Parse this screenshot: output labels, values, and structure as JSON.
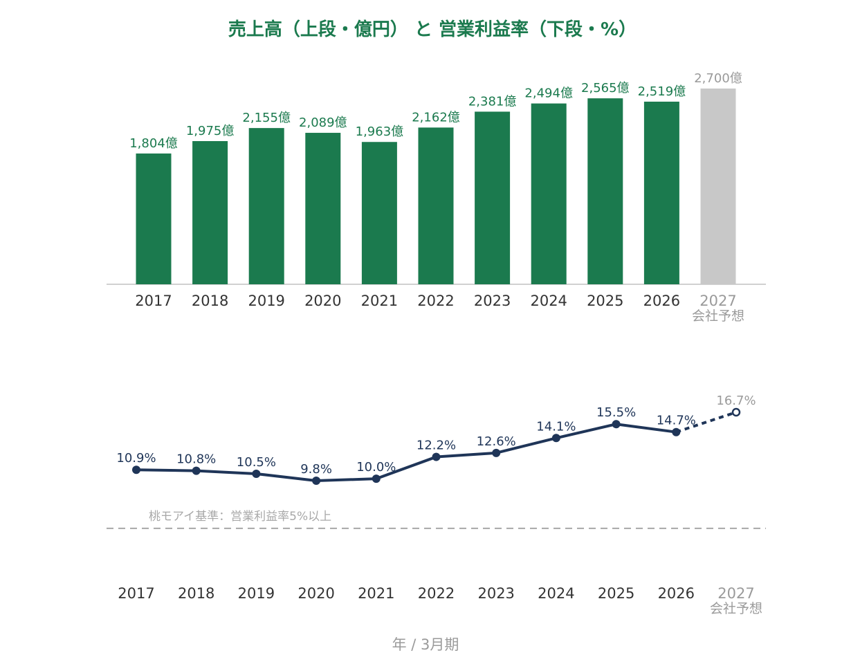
{
  "colors": {
    "bar": "#1b7a4e",
    "forecast_bar": "#c8c8c8",
    "line": "#1f3558",
    "title": "#1b7a4e",
    "forecast_text": "#9a9a9a",
    "tick": "#333333",
    "axis": "#b5b5b5",
    "threshold": "#a8a8a8"
  },
  "chart_data": [
    {
      "type": "bar",
      "title": "売上高（上段・億円） と 営業利益率（下段・%）",
      "categories": [
        "2017",
        "2018",
        "2019",
        "2020",
        "2021",
        "2022",
        "2023",
        "2024",
        "2025",
        "2026",
        "2027"
      ],
      "forecast_sublabel": "会社予想",
      "values": [
        1804,
        1975,
        2155,
        2089,
        1963,
        2162,
        2381,
        2494,
        2565,
        2519,
        2700
      ],
      "value_labels": [
        "1,804億",
        "1,975億",
        "2,155億",
        "2,089億",
        "1,963億",
        "2,162億",
        "2,381億",
        "2,494億",
        "2,565億",
        "2,519億",
        "2,700億"
      ],
      "forecast_index": 10,
      "ylim": [
        0,
        2700
      ]
    },
    {
      "type": "line",
      "categories": [
        "2017",
        "2018",
        "2019",
        "2020",
        "2021",
        "2022",
        "2023",
        "2024",
        "2025",
        "2026",
        "2027"
      ],
      "forecast_sublabel": "会社予想",
      "values": [
        10.9,
        10.8,
        10.5,
        9.8,
        10.0,
        12.2,
        12.6,
        14.1,
        15.5,
        14.7,
        16.7
      ],
      "value_labels": [
        "10.9%",
        "10.8%",
        "10.5%",
        "9.8%",
        "10.0%",
        "12.2%",
        "12.6%",
        "14.1%",
        "15.5%",
        "14.7%",
        "16.7%"
      ],
      "forecast_index": 10,
      "threshold": {
        "value": 5,
        "label": "桃モアイ基準：営業利益率5%以上"
      },
      "xlabel": "年 / 3月期"
    }
  ]
}
